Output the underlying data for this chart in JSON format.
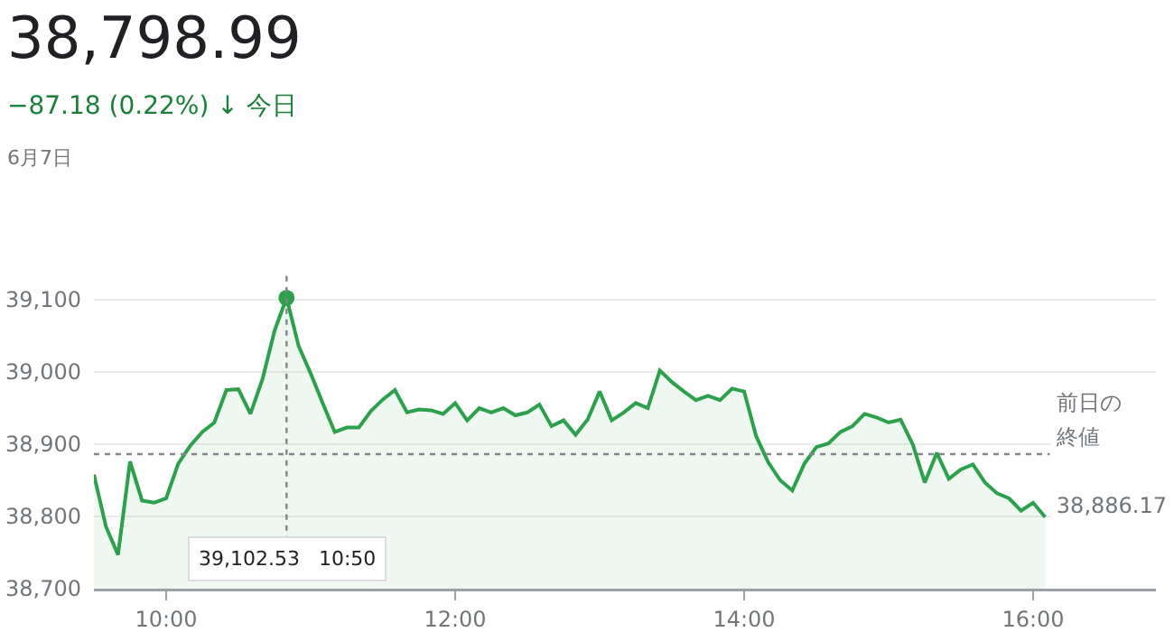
{
  "chart_data": {
    "type": "area",
    "title": "38,798.99",
    "subtitle": "−87.18 (0.22%) ↓ 今日",
    "annotations": [
      "6月7日",
      "39,102.53  10:50"
    ],
    "x": [
      9.5,
      9.5833,
      9.6667,
      9.75,
      9.8333,
      9.9167,
      10,
      10.0833,
      10.1667,
      10.25,
      10.3333,
      10.4167,
      10.5,
      10.5833,
      10.6667,
      10.75,
      10.8333,
      10.9167,
      11,
      11.0833,
      11.1667,
      11.25,
      11.3333,
      11.4167,
      11.5,
      11.5833,
      11.6667,
      11.75,
      11.8333,
      11.9167,
      12,
      12.0833,
      12.1667,
      12.25,
      12.3333,
      12.4167,
      12.5,
      12.5833,
      12.6667,
      12.75,
      12.8333,
      12.9167,
      13,
      13.0833,
      13.1667,
      13.25,
      13.3333,
      13.4167,
      13.5,
      13.5833,
      13.6667,
      13.75,
      13.8333,
      13.9167,
      14,
      14.0833,
      14.1667,
      14.25,
      14.3333,
      14.4167,
      14.5,
      14.5833,
      14.6667,
      14.75,
      14.8333,
      14.9167,
      15,
      15.0833,
      15.1667,
      15.25,
      15.3333,
      15.4167,
      15.5,
      15.5833,
      15.6667,
      15.75,
      15.8333,
      15.9167,
      16,
      16.0833
    ],
    "series": [
      {
        "type": "area",
        "color": "#2ba14b",
        "marker": "none",
        "values": [
          38858,
          38786,
          38747,
          38876,
          38822,
          38819,
          38825,
          38873,
          38898,
          38917,
          38930,
          38975,
          38976,
          38942,
          38990,
          39057,
          39102.53,
          39036,
          38998,
          38957,
          38917,
          38923,
          38923,
          38946,
          38962,
          38975,
          38944,
          38948,
          38947,
          38942,
          38957,
          38933,
          38950,
          38944,
          38950,
          38940,
          38944,
          38955,
          38925,
          38933,
          38913,
          38934,
          38973,
          38933,
          38944,
          38957,
          38950,
          39002,
          38986,
          38973,
          38961,
          38967,
          38961,
          38977,
          38973,
          38911,
          38875,
          38850,
          38836,
          38873,
          38896,
          38901,
          38917,
          38925,
          38942,
          38937,
          38930,
          38934,
          38900,
          38847,
          38888,
          38852,
          38865,
          38872,
          38847,
          38832,
          38825,
          38808,
          38819,
          38798.99
        ]
      },
      {
        "type": "scatter",
        "color": "#2ba14b",
        "marker": "circle",
        "x": [
          10.8333
        ],
        "values": [
          39102.53
        ]
      }
    ],
    "xlim": [
      9.5,
      16.85
    ],
    "xticks": [
      {
        "value": 10,
        "label": "10:00"
      },
      {
        "value": 12,
        "label": "12:00"
      },
      {
        "value": 14,
        "label": "14:00"
      },
      {
        "value": 16,
        "label": "16:00"
      }
    ],
    "ylim": [
      38700,
      39140
    ],
    "yticks": [
      {
        "value": 38700,
        "label": "38,700"
      },
      {
        "value": 38800,
        "label": "38,800"
      },
      {
        "value": 38900,
        "label": "38,900"
      },
      {
        "value": 39000,
        "label": "39,000"
      },
      {
        "value": 39100,
        "label": "39,100"
      }
    ],
    "ref_lines": [
      {
        "axis": "y",
        "value": 38886.17,
        "label": "前日の終値\n38,886.17",
        "line_style": "dotted",
        "color": "#80868b"
      },
      {
        "axis": "x",
        "value": 10.8333,
        "line_style": "dotted",
        "color": "#80868b"
      }
    ],
    "grid": "y"
  }
}
